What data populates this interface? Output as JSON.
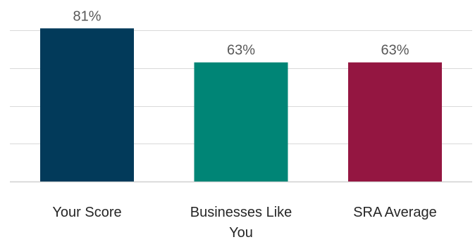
{
  "chart_data": {
    "type": "bar",
    "categories": [
      "Your Score",
      "Businesses Like You",
      "SRA Average"
    ],
    "category_lines": [
      [
        "Your Score"
      ],
      [
        "Businesses Like",
        "You"
      ],
      [
        "SRA Average"
      ]
    ],
    "values": [
      81,
      63,
      63
    ],
    "data_labels": [
      "81%",
      "63%",
      "63%"
    ],
    "colors": [
      "#023a5a",
      "#008576",
      "#941641"
    ],
    "ylim": [
      0,
      80
    ],
    "gridlines": [
      0,
      20,
      40,
      60,
      80
    ],
    "grid": true,
    "legend": "none",
    "title": "",
    "xlabel": "",
    "ylabel": ""
  }
}
